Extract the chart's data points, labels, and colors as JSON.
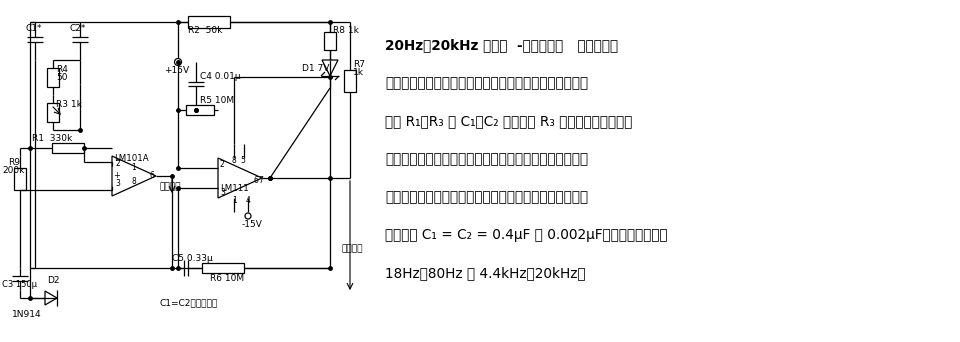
{
  "bg_color": "#ffffff",
  "fig_width": 9.6,
  "fig_height": 3.42,
  "dpi": 100,
  "text_lines": [
    "20Hz～20kHz 正弦波  －方波发生器   该电路把运",
    "放用作调谐电路，受来自电压比较器的方波驱动。振荡频",
    "率由 R₁、R₃ 及 C₁、C₂ 决定，用 R₃ 进行调谐。就正弦波",
    "送给比较器产生方波，反馈到调谐电路的输入端，为正弦",
    "振荡电路补充能量。稳压管起稳定反馈信号（方波）幅度",
    "的作用。 C₁ = C₂ = 0.4μF 或 0.002μF，对应振荡频率为",
    "18Hz～80Hz 或 4.4kHz～20kHz。"
  ]
}
